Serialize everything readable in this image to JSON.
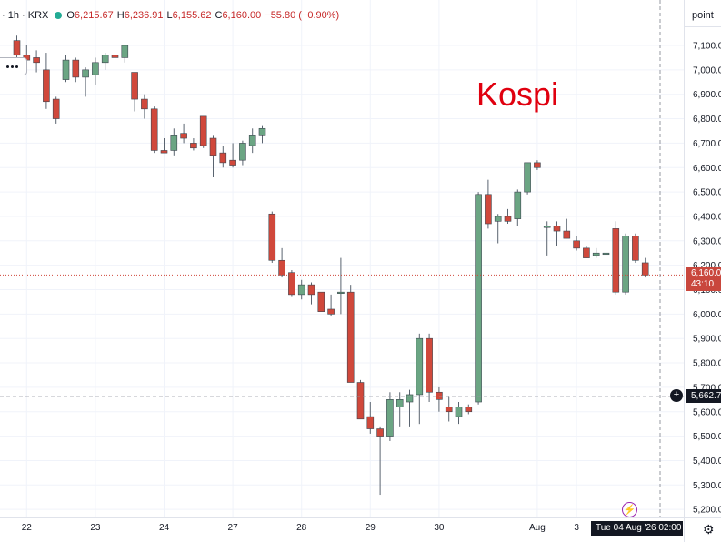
{
  "header": {
    "symbol_line": "· 1h · KRX",
    "open_label": "O",
    "open": "6,215.67",
    "high_label": "H",
    "high": "6,236.91",
    "low_label": "L",
    "low": "6,155.62",
    "close_label": "C",
    "close": "6,160.00",
    "change": "−55.80 (−0.90%)",
    "status_color": "#22ab94"
  },
  "scale_mode": "point",
  "overlay_title": "Kospi",
  "price_tag": {
    "price": "6,160.00",
    "countdown": "43:10"
  },
  "crosshair": {
    "price": "5,662.7",
    "time": "Tue 04 Aug '26  02:00"
  },
  "icons": [
    "plus-icon",
    "lightning-icon",
    "gear-icon",
    "more-icon"
  ],
  "colors": {
    "up": "#6ba583",
    "down": "#d0483b",
    "grid": "#f0f3fa",
    "axis_text": "#131722"
  },
  "chart_data": {
    "type": "candlestick",
    "title": "",
    "xlabel": "",
    "ylabel": "",
    "ylim": [
      5150,
      7180
    ],
    "y_ticks": [
      5200,
      5300,
      5400,
      5500,
      5600,
      5700,
      5800,
      5900,
      6000,
      6100,
      6200,
      6300,
      6400,
      6500,
      6600,
      6700,
      6800,
      6900,
      7000,
      7100
    ],
    "y_tick_labels": [
      "5,200.00",
      "5,300.00",
      "5,400.00",
      "5,500.00",
      "5,600.00",
      "5,700.00",
      "5,800.00",
      "5,900.00",
      "6,000.00",
      "6,100.00",
      "6,200.00",
      "6,300.00",
      "6,400.00",
      "6,500.00",
      "6,600.00",
      "6,700.00",
      "6,800.00",
      "6,900.00",
      "7,000.00",
      "7,100.00"
    ],
    "x_ticks": [
      {
        "label": "22",
        "index": 1
      },
      {
        "label": "23",
        "index": 8
      },
      {
        "label": "24",
        "index": 15
      },
      {
        "label": "27",
        "index": 22
      },
      {
        "label": "28",
        "index": 29
      },
      {
        "label": "29",
        "index": 36
      },
      {
        "label": "30",
        "index": 43
      },
      {
        "label": "Aug",
        "index": 53
      },
      {
        "label": "3",
        "index": 57
      }
    ],
    "grid": true,
    "last_price": 6160.0,
    "crosshair_price": 5662.7,
    "candles": [
      {
        "o": 7120,
        "h": 7140,
        "l": 7050,
        "c": 7060
      },
      {
        "o": 7060,
        "h": 7100,
        "l": 6990,
        "c": 7040
      },
      {
        "o": 7050,
        "h": 7080,
        "l": 6990,
        "c": 7030
      },
      {
        "o": 7000,
        "h": 7070,
        "l": 6840,
        "c": 6870
      },
      {
        "o": 6880,
        "h": 6890,
        "l": 6780,
        "c": 6800
      },
      {
        "o": 6960,
        "h": 7060,
        "l": 6950,
        "c": 7040
      },
      {
        "o": 7040,
        "h": 7050,
        "l": 6950,
        "c": 6970
      },
      {
        "o": 6970,
        "h": 7010,
        "l": 6890,
        "c": 7000
      },
      {
        "o": 6980,
        "h": 7050,
        "l": 6940,
        "c": 7030
      },
      {
        "o": 7030,
        "h": 7070,
        "l": 7000,
        "c": 7060
      },
      {
        "o": 7060,
        "h": 7110,
        "l": 7030,
        "c": 7050
      },
      {
        "o": 7050,
        "h": 7100,
        "l": 7030,
        "c": 7100
      },
      {
        "o": 6990,
        "h": 6990,
        "l": 6830,
        "c": 6880
      },
      {
        "o": 6880,
        "h": 6900,
        "l": 6800,
        "c": 6840
      },
      {
        "o": 6840,
        "h": 6850,
        "l": 6660,
        "c": 6670
      },
      {
        "o": 6670,
        "h": 6720,
        "l": 6660,
        "c": 6660
      },
      {
        "o": 6670,
        "h": 6760,
        "l": 6650,
        "c": 6730
      },
      {
        "o": 6740,
        "h": 6780,
        "l": 6700,
        "c": 6720
      },
      {
        "o": 6700,
        "h": 6720,
        "l": 6670,
        "c": 6680
      },
      {
        "o": 6810,
        "h": 6810,
        "l": 6680,
        "c": 6690
      },
      {
        "o": 6720,
        "h": 6730,
        "l": 6560,
        "c": 6650
      },
      {
        "o": 6660,
        "h": 6690,
        "l": 6600,
        "c": 6620
      },
      {
        "o": 6630,
        "h": 6700,
        "l": 6600,
        "c": 6610
      },
      {
        "o": 6630,
        "h": 6710,
        "l": 6610,
        "c": 6700
      },
      {
        "o": 6690,
        "h": 6760,
        "l": 6660,
        "c": 6730
      },
      {
        "o": 6730,
        "h": 6770,
        "l": 6700,
        "c": 6760
      },
      {
        "o": 6410,
        "h": 6420,
        "l": 6210,
        "c": 6220
      },
      {
        "o": 6220,
        "h": 6270,
        "l": 6150,
        "c": 6160
      },
      {
        "o": 6170,
        "h": 6180,
        "l": 6070,
        "c": 6080
      },
      {
        "o": 6080,
        "h": 6140,
        "l": 6060,
        "c": 6120
      },
      {
        "o": 6120,
        "h": 6130,
        "l": 6040,
        "c": 6080
      },
      {
        "o": 6090,
        "h": 6090,
        "l": 6010,
        "c": 6010
      },
      {
        "o": 6020,
        "h": 6080,
        "l": 5990,
        "c": 6000
      },
      {
        "o": 6090,
        "h": 6230,
        "l": 6000,
        "c": 6090
      },
      {
        "o": 6090,
        "h": 6120,
        "l": 5720,
        "c": 5720
      },
      {
        "o": 5720,
        "h": 5730,
        "l": 5570,
        "c": 5570
      },
      {
        "o": 5580,
        "h": 5640,
        "l": 5510,
        "c": 5530
      },
      {
        "o": 5530,
        "h": 5540,
        "l": 5260,
        "c": 5500
      },
      {
        "o": 5500,
        "h": 5680,
        "l": 5480,
        "c": 5650
      },
      {
        "o": 5620,
        "h": 5680,
        "l": 5540,
        "c": 5650
      },
      {
        "o": 5640,
        "h": 5690,
        "l": 5540,
        "c": 5670
      },
      {
        "o": 5670,
        "h": 5920,
        "l": 5550,
        "c": 5900
      },
      {
        "o": 5900,
        "h": 5920,
        "l": 5640,
        "c": 5680
      },
      {
        "o": 5680,
        "h": 5700,
        "l": 5600,
        "c": 5650
      },
      {
        "o": 5620,
        "h": 5660,
        "l": 5560,
        "c": 5600
      },
      {
        "o": 5580,
        "h": 5640,
        "l": 5550,
        "c": 5620
      },
      {
        "o": 5620,
        "h": 5630,
        "l": 5590,
        "c": 5600
      },
      {
        "o": 5640,
        "h": 6500,
        "l": 5630,
        "c": 6490
      },
      {
        "o": 6490,
        "h": 6550,
        "l": 6350,
        "c": 6370
      },
      {
        "o": 6380,
        "h": 6410,
        "l": 6290,
        "c": 6400
      },
      {
        "o": 6400,
        "h": 6430,
        "l": 6370,
        "c": 6380
      },
      {
        "o": 6390,
        "h": 6510,
        "l": 6360,
        "c": 6500
      },
      {
        "o": 6500,
        "h": 6620,
        "l": 6490,
        "c": 6620
      },
      {
        "o": 6620,
        "h": 6630,
        "l": 6590,
        "c": 6600
      },
      {
        "o": 6360,
        "h": 6380,
        "l": 6240,
        "c": 6360
      },
      {
        "o": 6360,
        "h": 6380,
        "l": 6280,
        "c": 6340
      },
      {
        "o": 6340,
        "h": 6390,
        "l": 6310,
        "c": 6310
      },
      {
        "o": 6300,
        "h": 6320,
        "l": 6260,
        "c": 6270
      },
      {
        "o": 6270,
        "h": 6280,
        "l": 6230,
        "c": 6230
      },
      {
        "o": 6240,
        "h": 6270,
        "l": 6230,
        "c": 6250
      },
      {
        "o": 6250,
        "h": 6260,
        "l": 6220,
        "c": 6250
      },
      {
        "o": 6350,
        "h": 6380,
        "l": 6080,
        "c": 6090
      },
      {
        "o": 6090,
        "h": 6330,
        "l": 6080,
        "c": 6320
      },
      {
        "o": 6320,
        "h": 6330,
        "l": 6210,
        "c": 6220
      },
      {
        "o": 6210,
        "h": 6230,
        "l": 6150,
        "c": 6160
      }
    ]
  }
}
